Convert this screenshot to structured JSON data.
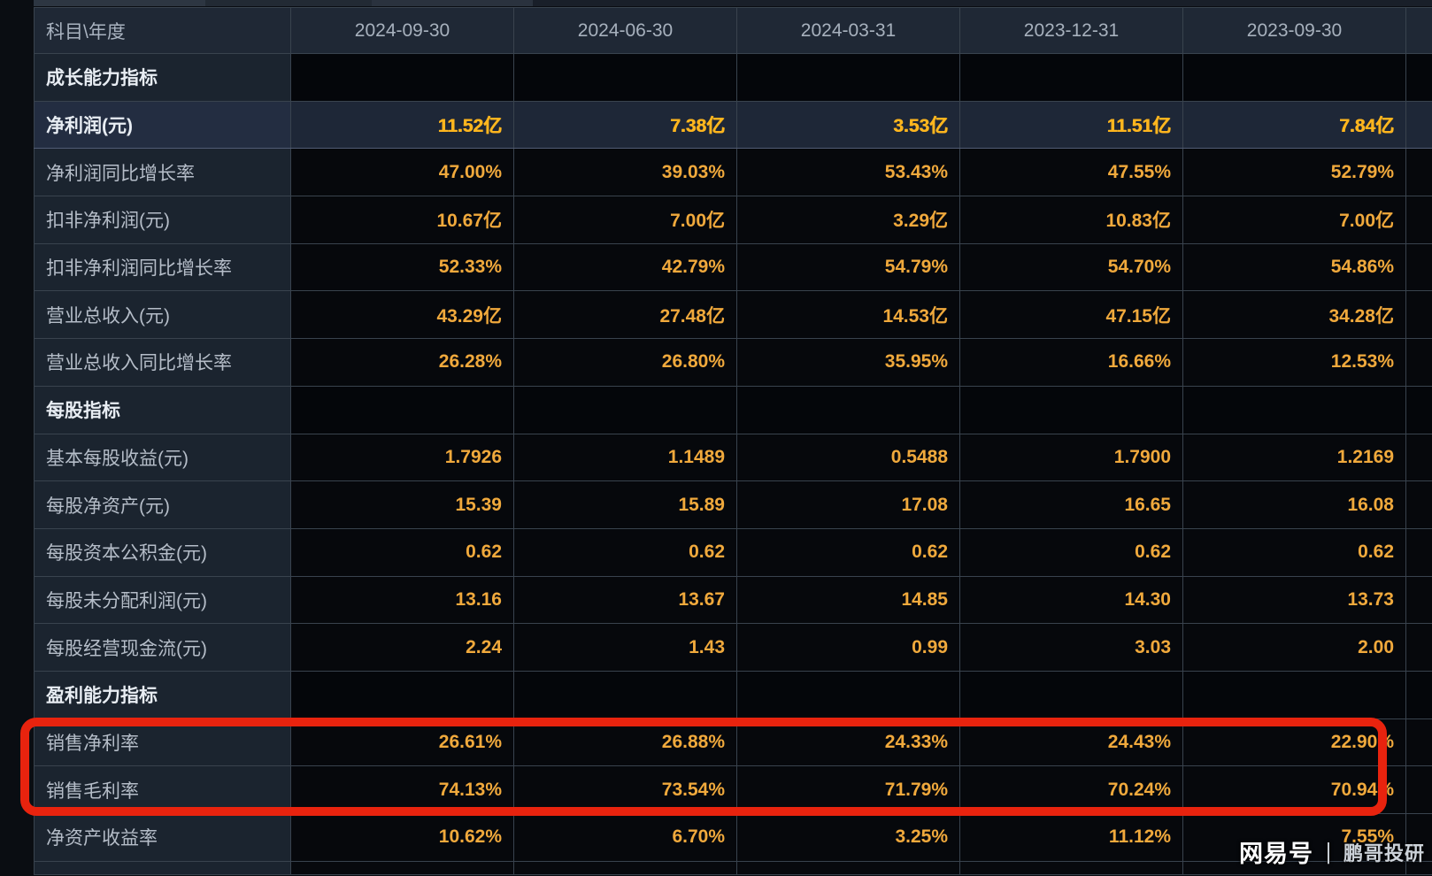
{
  "table": {
    "header": [
      "科目\\年度",
      "2024-09-30",
      "2024-06-30",
      "2024-03-31",
      "2023-12-31",
      "2023-09-30"
    ],
    "rows": [
      {
        "type": "section",
        "label": "成长能力指标",
        "values": [
          "",
          "",
          "",
          "",
          ""
        ]
      },
      {
        "type": "highlight",
        "label": "净利润(元)",
        "values": [
          "11.52亿",
          "7.38亿",
          "3.53亿",
          "11.51亿",
          "7.84亿"
        ]
      },
      {
        "type": "data",
        "label": "净利润同比增长率",
        "values": [
          "47.00%",
          "39.03%",
          "53.43%",
          "47.55%",
          "52.79%"
        ]
      },
      {
        "type": "data",
        "label": "扣非净利润(元)",
        "values": [
          "10.67亿",
          "7.00亿",
          "3.29亿",
          "10.83亿",
          "7.00亿"
        ]
      },
      {
        "type": "data",
        "label": "扣非净利润同比增长率",
        "values": [
          "52.33%",
          "42.79%",
          "54.79%",
          "54.70%",
          "54.86%"
        ]
      },
      {
        "type": "data",
        "label": "营业总收入(元)",
        "values": [
          "43.29亿",
          "27.48亿",
          "14.53亿",
          "47.15亿",
          "34.28亿"
        ]
      },
      {
        "type": "data",
        "label": "营业总收入同比增长率",
        "values": [
          "26.28%",
          "26.80%",
          "35.95%",
          "16.66%",
          "12.53%"
        ]
      },
      {
        "type": "section",
        "label": "每股指标",
        "values": [
          "",
          "",
          "",
          "",
          ""
        ]
      },
      {
        "type": "data",
        "label": "基本每股收益(元)",
        "values": [
          "1.7926",
          "1.1489",
          "0.5488",
          "1.7900",
          "1.2169"
        ]
      },
      {
        "type": "data",
        "label": "每股净资产(元)",
        "values": [
          "15.39",
          "15.89",
          "17.08",
          "16.65",
          "16.08"
        ]
      },
      {
        "type": "data",
        "label": "每股资本公积金(元)",
        "values": [
          "0.62",
          "0.62",
          "0.62",
          "0.62",
          "0.62"
        ]
      },
      {
        "type": "data",
        "label": "每股未分配利润(元)",
        "values": [
          "13.16",
          "13.67",
          "14.85",
          "14.30",
          "13.73"
        ]
      },
      {
        "type": "data",
        "label": "每股经营现金流(元)",
        "values": [
          "2.24",
          "1.43",
          "0.99",
          "3.03",
          "2.00"
        ]
      },
      {
        "type": "section",
        "label": "盈利能力指标",
        "values": [
          "",
          "",
          "",
          "",
          ""
        ]
      },
      {
        "type": "data",
        "label": "销售净利率",
        "values": [
          "26.61%",
          "26.88%",
          "24.33%",
          "24.43%",
          "22.90%"
        ]
      },
      {
        "type": "data",
        "label": "销售毛利率",
        "values": [
          "74.13%",
          "73.54%",
          "71.79%",
          "70.24%",
          "70.94%"
        ]
      },
      {
        "type": "data",
        "label": "净资产收益率",
        "values": [
          "10.62%",
          "6.70%",
          "3.25%",
          "11.12%",
          "7.55%"
        ]
      }
    ]
  },
  "annotation": {
    "shape": "red-rounded-rectangle",
    "highlighted_rows": [
      "销售净利率",
      "销售毛利率"
    ]
  },
  "watermark": {
    "brand": "网易号",
    "separator": "丨",
    "author": "鹏哥投研"
  },
  "colors": {
    "accent-value": "#f0a93c",
    "accent-value-bold": "#ffb61e",
    "highlight-row-bg": "#1e2737",
    "annotation-red": "#e8230e"
  }
}
